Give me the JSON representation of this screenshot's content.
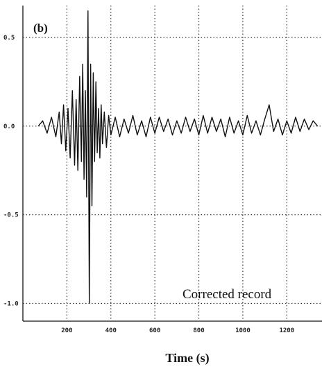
{
  "chart_data": {
    "type": "line",
    "panel_label": "(b)",
    "title": "",
    "xlabel": "Time (s)",
    "ylabel": "",
    "annotation": "Corrected record",
    "x_ticks": [
      200,
      400,
      600,
      800,
      1000,
      1200
    ],
    "x_tick_labels": [
      "200",
      "400",
      "600",
      "800",
      "1000",
      "1200"
    ],
    "y_ticks": [
      0.5,
      0.0,
      -0.5,
      -1.0
    ],
    "y_tick_labels": [
      "0.5",
      "0.0",
      "-0.5",
      "-1.0"
    ],
    "xlim": [
      0,
      1360
    ],
    "ylim": [
      -1.1,
      0.68
    ],
    "grid": true,
    "series": [
      {
        "x": [
          70,
          90,
          110,
          130,
          150,
          165,
          175,
          185,
          195,
          205,
          215,
          225,
          235,
          242,
          250,
          258,
          266,
          272,
          278,
          284,
          290,
          296,
          302,
          308,
          314,
          320,
          326,
          332,
          338,
          344,
          350,
          356,
          362,
          370,
          380,
          390,
          400,
          420,
          440,
          460,
          480,
          500,
          520,
          540,
          560,
          580,
          600,
          620,
          640,
          660,
          680,
          700,
          720,
          740,
          760,
          780,
          800,
          820,
          840,
          860,
          880,
          900,
          920,
          940,
          960,
          980,
          1000,
          1020,
          1040,
          1060,
          1080,
          1100,
          1120,
          1140,
          1160,
          1180,
          1200,
          1220,
          1240,
          1260,
          1280,
          1300,
          1320,
          1340
        ],
        "y": [
          0.0,
          0.03,
          -0.04,
          0.05,
          -0.06,
          0.08,
          -0.1,
          0.12,
          -0.14,
          0.1,
          -0.18,
          0.2,
          -0.22,
          0.15,
          -0.25,
          0.28,
          -0.2,
          0.35,
          -0.3,
          0.2,
          -0.4,
          0.65,
          -1.0,
          0.35,
          -0.45,
          0.3,
          -0.2,
          0.25,
          -0.15,
          0.1,
          -0.18,
          0.12,
          -0.1,
          0.08,
          -0.12,
          0.06,
          -0.05,
          0.05,
          -0.06,
          0.04,
          -0.04,
          0.06,
          -0.05,
          0.03,
          -0.06,
          0.05,
          -0.04,
          0.05,
          -0.03,
          0.04,
          -0.05,
          0.03,
          -0.04,
          0.05,
          -0.03,
          0.04,
          -0.05,
          0.06,
          -0.04,
          0.05,
          -0.03,
          0.04,
          -0.06,
          0.05,
          -0.04,
          0.03,
          -0.05,
          0.06,
          -0.04,
          0.03,
          -0.05,
          0.04,
          0.12,
          -0.03,
          0.04,
          -0.05,
          0.03,
          -0.04,
          0.05,
          -0.03,
          0.04,
          -0.02,
          0.03,
          0.0
        ]
      }
    ]
  }
}
